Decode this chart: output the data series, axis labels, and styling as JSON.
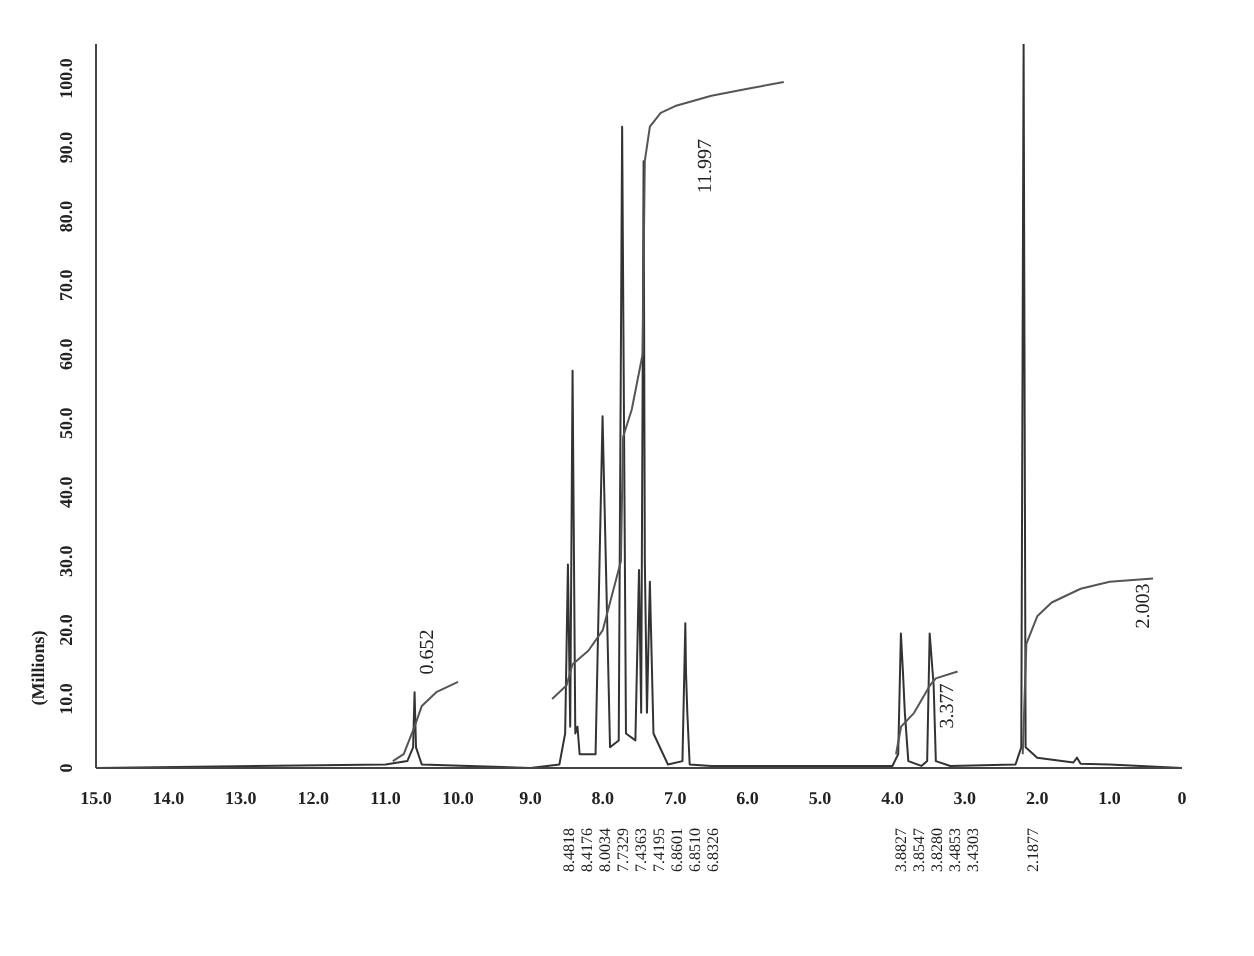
{
  "chart_data": {
    "type": "line",
    "ylabel": "(Millions)",
    "xlim": [
      15,
      0
    ],
    "ylim": [
      0,
      105
    ],
    "xticks": [
      {
        "value": 15,
        "label": "15.0"
      },
      {
        "value": 14,
        "label": "14.0"
      },
      {
        "value": 13,
        "label": "13.0"
      },
      {
        "value": 12,
        "label": "12.0"
      },
      {
        "value": 11,
        "label": "11.0"
      },
      {
        "value": 10,
        "label": "10.0"
      },
      {
        "value": 9,
        "label": "9.0"
      },
      {
        "value": 8,
        "label": "8.0"
      },
      {
        "value": 7,
        "label": "7.0"
      },
      {
        "value": 6,
        "label": "6.0"
      },
      {
        "value": 5,
        "label": "5.0"
      },
      {
        "value": 4,
        "label": "4.0"
      },
      {
        "value": 3,
        "label": "3.0"
      },
      {
        "value": 2,
        "label": "2.0"
      },
      {
        "value": 1,
        "label": "1.0"
      },
      0
    ],
    "yticks": [
      0,
      {
        "value": 10,
        "label": "10.0"
      },
      {
        "value": 20,
        "label": "20.0"
      },
      {
        "value": 30,
        "label": "30.0"
      },
      {
        "value": 40,
        "label": "40.0"
      },
      {
        "value": 50,
        "label": "50.0"
      },
      {
        "value": 60,
        "label": "60.0"
      },
      {
        "value": 70,
        "label": "70.0"
      },
      {
        "value": 80,
        "label": "80.0"
      },
      {
        "value": 90,
        "label": "90.0"
      },
      {
        "value": 100,
        "label": "100.0"
      }
    ],
    "grid": false,
    "marker": "none",
    "line_style": "solid",
    "series": [
      {
        "color": "#333333",
        "x": [
          15,
          11,
          10.7,
          10.62,
          10.6,
          10.58,
          10.5,
          9,
          8.6,
          8.52,
          8.4818,
          8.45,
          8.4176,
          8.38,
          8.35,
          8.32,
          8.1,
          8.0034,
          7.9,
          7.78,
          7.7329,
          7.68,
          7.55,
          7.5,
          7.47,
          7.4363,
          7.4195,
          7.39,
          7.35,
          7.3,
          7.1,
          6.9,
          6.8601,
          6.851,
          6.8326,
          6.8,
          6.5,
          4.0,
          3.92,
          3.8827,
          3.8547,
          3.828,
          3.78,
          3.6,
          3.52,
          3.4853,
          3.4303,
          3.4,
          3.2,
          2.3,
          2.22,
          2.1877,
          2.16,
          2.0,
          1.5,
          1.45,
          1.4,
          1.0,
          0
        ],
        "values": [
          0,
          0.5,
          1,
          3,
          11,
          3,
          0.5,
          0,
          0.5,
          5,
          29.5,
          6,
          57.6,
          5,
          6,
          2,
          2,
          51,
          3,
          4,
          93,
          5,
          4,
          28.7,
          8,
          88,
          30,
          8,
          27,
          5,
          0.5,
          1,
          21,
          14,
          8,
          0.5,
          0.3,
          0.3,
          2,
          19.5,
          14,
          8,
          1,
          0.3,
          1,
          19.5,
          12,
          1,
          0.3,
          0.5,
          3,
          105,
          3,
          1.5,
          0.8,
          1.5,
          0.6,
          0.5,
          0
        ]
      },
      {
        "color": "#555555",
        "x": [
          10.9,
          10.75,
          10.6,
          10.5,
          10.3,
          10.0
        ],
        "values": [
          1,
          2,
          6,
          9,
          11,
          12.5
        ]
      },
      {
        "color": "#555555",
        "x": [
          8.7,
          8.5,
          8.42,
          8.2,
          8.0,
          7.9,
          7.75,
          7.72,
          7.6,
          7.45,
          7.42,
          7.35,
          7.2,
          7.0,
          6.5,
          6.0,
          5.5
        ],
        "values": [
          10,
          12,
          15,
          17,
          20,
          24,
          30,
          48,
          52,
          60,
          88,
          93,
          95,
          96,
          97.5,
          98.5,
          99.5
        ]
      },
      {
        "color": "#555555",
        "x": [
          3.95,
          3.88,
          3.7,
          3.48,
          3.4,
          3.1
        ],
        "values": [
          2,
          6,
          8,
          12,
          13,
          14
        ]
      },
      {
        "color": "#555555",
        "x": [
          2.2,
          2.15,
          2.0,
          1.8,
          1.4,
          1.0,
          0.4
        ],
        "values": [
          2,
          18,
          22,
          24,
          26,
          27,
          27.5
        ]
      }
    ],
    "annotations": [
      "0.652",
      "11.997",
      "3.377",
      "2.003",
      "8.4818",
      "8.4176",
      "8.0034",
      "7.7329",
      "7.4363",
      "7.4195",
      "6.8601",
      "6.8510",
      "6.8326",
      "3.8827",
      "3.8547",
      "3.8280",
      "3.4853",
      "3.4303",
      "2.1877"
    ]
  }
}
